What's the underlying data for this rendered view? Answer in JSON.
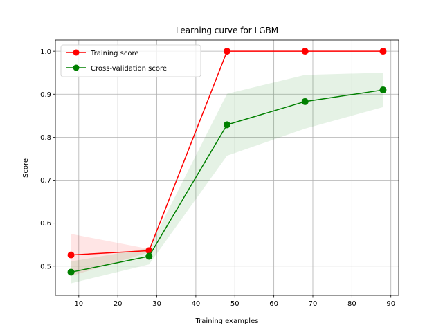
{
  "chart_data": {
    "type": "line",
    "title": "Learning curve for LGBM",
    "xlabel": "Training examples",
    "ylabel": "Score",
    "xlim": [
      4.0,
      92.0
    ],
    "ylim": [
      0.432,
      1.026
    ],
    "xticks": [
      10,
      20,
      30,
      40,
      50,
      60,
      70,
      80,
      90
    ],
    "yticks": [
      0.5,
      0.6,
      0.7,
      0.8,
      0.9,
      1.0
    ],
    "xtick_labels": [
      "10",
      "20",
      "30",
      "40",
      "50",
      "60",
      "70",
      "80",
      "90"
    ],
    "ytick_labels": [
      "0.5",
      "0.6",
      "0.7",
      "0.8",
      "0.9",
      "1.0"
    ],
    "grid": true,
    "legend_position": "top-left",
    "x": [
      8,
      28,
      48,
      68,
      88
    ],
    "series": [
      {
        "name": "Training score",
        "color": "#ff0000",
        "values": [
          0.526,
          0.536,
          1.0,
          1.0,
          1.0
        ],
        "band_lower": [
          0.477,
          0.532,
          1.0,
          1.0,
          1.0
        ],
        "band_upper": [
          0.575,
          0.54,
          1.0,
          1.0,
          1.0
        ]
      },
      {
        "name": "Cross-validation score",
        "color": "#008000",
        "values": [
          0.486,
          0.523,
          0.829,
          0.883,
          0.91
        ],
        "band_lower": [
          0.46,
          0.504,
          0.757,
          0.82,
          0.87
        ],
        "band_upper": [
          0.511,
          0.542,
          0.901,
          0.945,
          0.95
        ]
      }
    ]
  }
}
